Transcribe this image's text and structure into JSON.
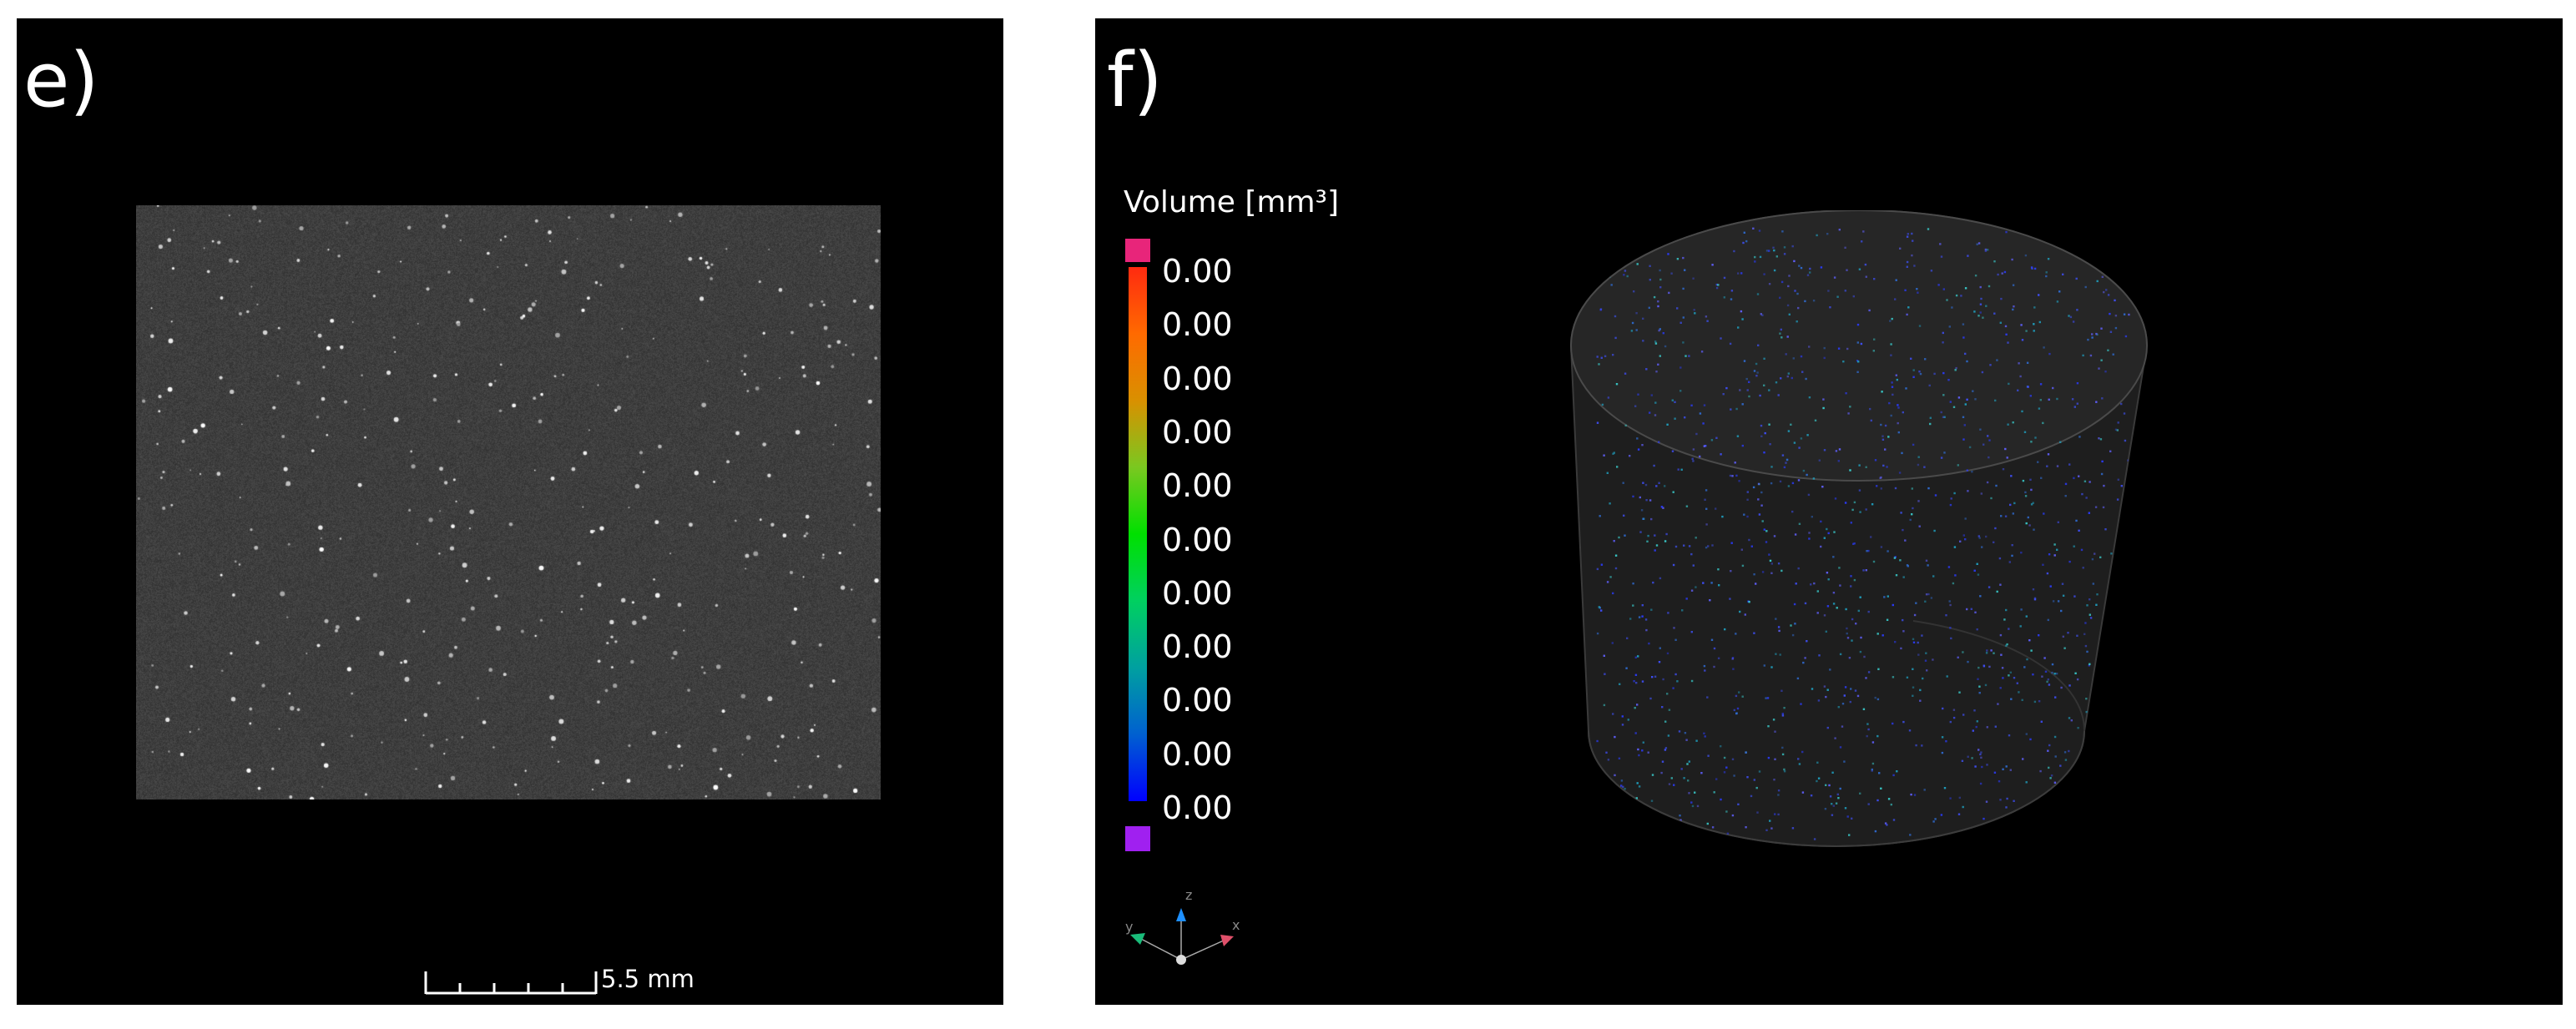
{
  "panels": [
    {
      "label": "e)",
      "scale_bar": {
        "text": "5.5 mm"
      }
    },
    {
      "label": "f)",
      "legend": {
        "title": "Volume [mm³]",
        "tick_labels": [
          "0.00",
          "0.00",
          "0.00",
          "0.00",
          "0.00",
          "0.00",
          "0.00",
          "0.00",
          "0.00",
          "0.00",
          "0.00"
        ],
        "colors": {
          "top_marker": "#e8257a",
          "bottom_marker": "#a020f0",
          "gradient": [
            "#ff2a10",
            "#ff6a00",
            "#d99000",
            "#7ac820",
            "#00e000",
            "#00d060",
            "#00a0a0",
            "#0060d0",
            "#0000ff"
          ]
        }
      },
      "axis_triad": {
        "labels": [
          "y",
          "z",
          "x"
        ]
      }
    }
  ]
}
